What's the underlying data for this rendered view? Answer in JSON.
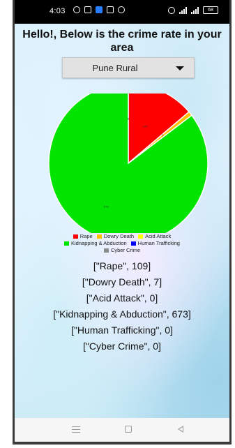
{
  "status_bar": {
    "time": "4:03",
    "battery": "68"
  },
  "header": {
    "title": "Hello!, Below is the crime rate in your area"
  },
  "district_select": {
    "value": "Pune Rural"
  },
  "chart_data": {
    "type": "pie",
    "categories": [
      "Rape",
      "Dowry Death",
      "Acid Attack",
      "Kidnapping & Abduction",
      "Human Trafficking",
      "Cyber Crime"
    ],
    "values": [
      109,
      7,
      0,
      673,
      0,
      0
    ],
    "colors": [
      "#ff0000",
      "#ffc000",
      "#ffff00",
      "#00e400",
      "#0000ff",
      "#8c8c8c"
    ],
    "start_angle_deg": 0,
    "direction": "clockwise",
    "slice_labels": [
      "109",
      "7",
      "0",
      "673",
      "0",
      "0"
    ],
    "legend_position": "bottom"
  },
  "data_lines": [
    "[\"Rape\", 109]",
    "[\"Dowry Death\", 7]",
    "[\"Acid Attack\", 0]",
    "[\"Kidnapping & Abduction\", 673]",
    "[\"Human Trafficking\", 0]",
    "[\"Cyber Crime\", 0]"
  ]
}
